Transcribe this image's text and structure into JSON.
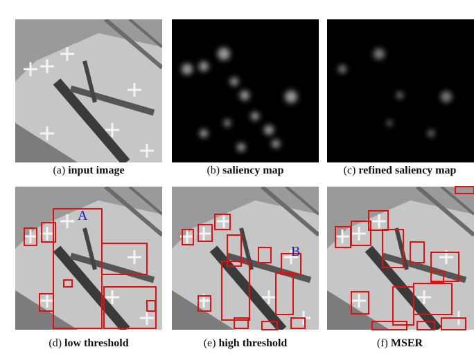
{
  "panels": [
    {
      "tag": "(a)",
      "text": "input image"
    },
    {
      "tag": "(b)",
      "text": "saliency map"
    },
    {
      "tag": "(c)",
      "text": "refined saliency map"
    },
    {
      "tag": "(d)",
      "text": "low threshold"
    },
    {
      "tag": "(e)",
      "text": "high threshold"
    },
    {
      "tag": "(f)",
      "text": "MSER"
    }
  ],
  "annotations": [
    {
      "label": "A"
    },
    {
      "label": "B"
    }
  ]
}
